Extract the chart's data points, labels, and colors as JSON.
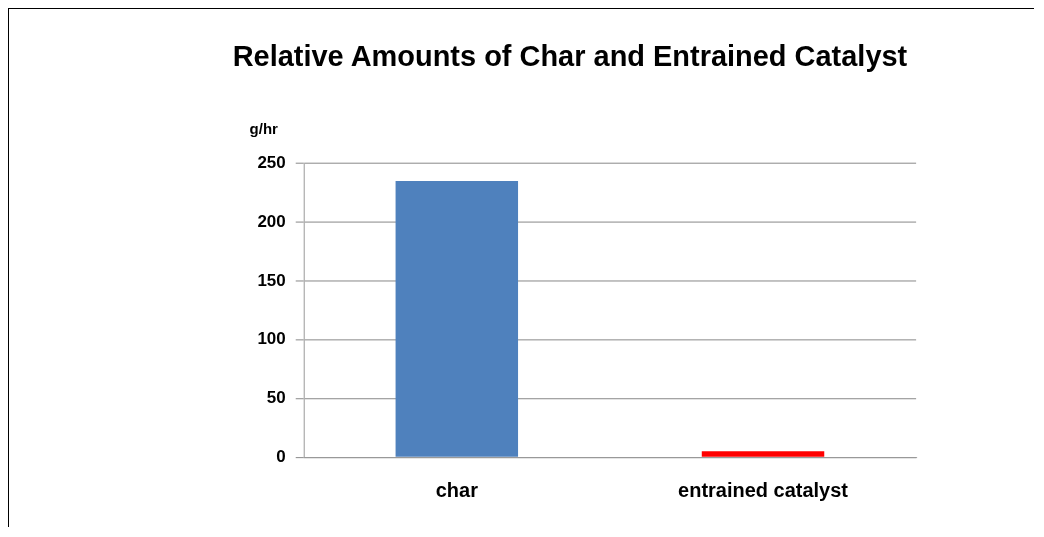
{
  "chart_data": {
    "type": "bar",
    "title": "Relative Amounts of Char and Entrained Catalyst",
    "ylabel": "g/hr",
    "categories": [
      "char",
      "entrained catalyst"
    ],
    "values": [
      235,
      5
    ],
    "colors": [
      "#4f81bd",
      "#ff0000"
    ],
    "ylim": [
      0,
      250
    ],
    "yticks": [
      0,
      50,
      100,
      150,
      200,
      250
    ],
    "grid": "y",
    "legend": false
  }
}
